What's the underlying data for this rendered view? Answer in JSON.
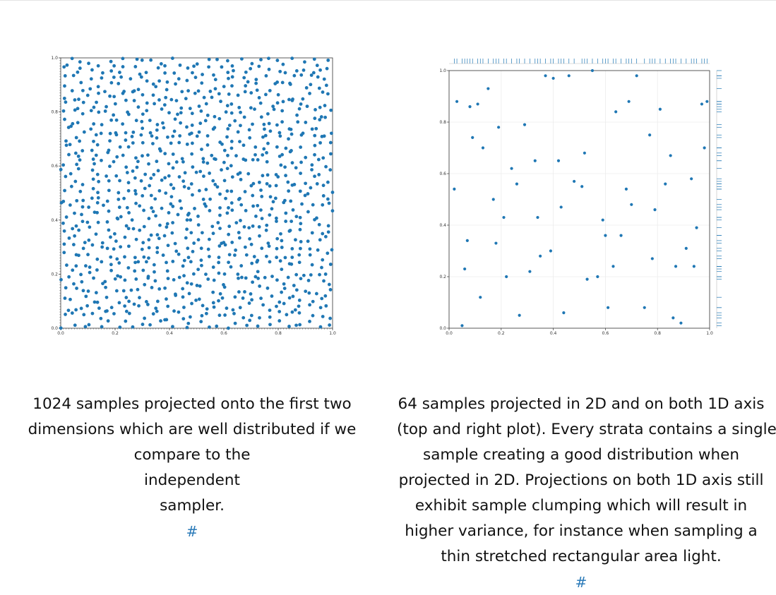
{
  "figures": [
    {
      "caption_lines": [
        "1024 samples projected onto the first two",
        "dimensions which are well distributed if we",
        "compare to the",
        "independent",
        "sampler."
      ],
      "anchor": "#"
    },
    {
      "caption_lines": [
        "64 samples projected in 2D and on both 1D axis",
        "(top and right plot). Every strata contains a single",
        "sample creating a good distribution when",
        "projected in 2D. Projections on both 1D axis still",
        "exhibit sample clumping which will result in",
        "higher variance, for instance when sampling a",
        "thin stretched rectangular area light."
      ],
      "anchor": "#"
    }
  ],
  "colors": {
    "points": "#1f77b4",
    "axes": "#333333",
    "grid": "#ececec",
    "link": "#2a7ab8"
  },
  "chart_data": [
    {
      "type": "scatter",
      "n_points": 1024,
      "xlim": [
        0.0,
        1.0
      ],
      "ylim": [
        0.0,
        1.0
      ],
      "xticks": [
        "0.0",
        "0.2",
        "0.4",
        "0.6",
        "0.8",
        "1.0"
      ],
      "yticks": [
        "0.0",
        "0.2",
        "0.4",
        "0.6",
        "0.8",
        "1.0"
      ],
      "grid": false,
      "marginal_rugs": false
    },
    {
      "type": "scatter",
      "n_points": 64,
      "xlim": [
        0.0,
        1.0
      ],
      "ylim": [
        0.0,
        1.0
      ],
      "xticks": [
        "0.0",
        "0.2",
        "0.4",
        "0.6",
        "0.8",
        "1.0"
      ],
      "yticks": [
        "0.0",
        "0.2",
        "0.4",
        "0.6",
        "0.8",
        "1.0"
      ],
      "grid": true,
      "marginal_rugs": true,
      "x": [
        0.05,
        0.12,
        0.18,
        0.27,
        0.35,
        0.44,
        0.53,
        0.61,
        0.7,
        0.78,
        0.86,
        0.94,
        0.06,
        0.13,
        0.22,
        0.31,
        0.39,
        0.48,
        0.57,
        0.66,
        0.75,
        0.83,
        0.91,
        0.98,
        0.03,
        0.11,
        0.19,
        0.29,
        0.37,
        0.46,
        0.55,
        0.64,
        0.72,
        0.81,
        0.89,
        0.97,
        0.07,
        0.15,
        0.24,
        0.33,
        0.42,
        0.51,
        0.59,
        0.68,
        0.77,
        0.85,
        0.93,
        0.02,
        0.09,
        0.17,
        0.26,
        0.34,
        0.43,
        0.52,
        0.6,
        0.69,
        0.79,
        0.87,
        0.95,
        0.08,
        0.21,
        0.4,
        0.63,
        0.99
      ],
      "y": [
        0.01,
        0.12,
        0.33,
        0.05,
        0.28,
        0.06,
        0.19,
        0.08,
        0.48,
        0.27,
        0.04,
        0.24,
        0.23,
        0.7,
        0.2,
        0.22,
        0.3,
        0.57,
        0.2,
        0.36,
        0.08,
        0.56,
        0.31,
        0.7,
        0.88,
        0.87,
        0.78,
        0.79,
        0.98,
        0.98,
        1.0,
        0.84,
        0.98,
        0.85,
        0.02,
        0.87,
        0.34,
        0.93,
        0.62,
        0.65,
        0.65,
        0.55,
        0.42,
        0.54,
        0.75,
        0.67,
        0.58,
        0.54,
        0.74,
        0.5,
        0.56,
        0.43,
        0.47,
        0.68,
        0.36,
        0.88,
        0.46,
        0.24,
        0.39,
        0.86,
        0.43,
        0.97,
        0.24,
        0.88
      ]
    }
  ]
}
